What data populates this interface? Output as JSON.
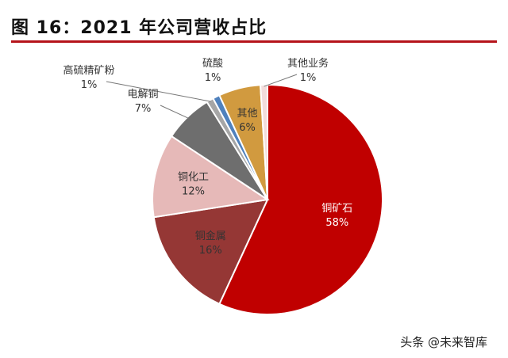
{
  "header": {
    "title": "图 16：2021 年公司营收占比"
  },
  "watermark": {
    "text": "头条 @未来智库"
  },
  "chart_data": {
    "type": "pie",
    "title": "图 16：2021 年公司营收占比",
    "slices": [
      {
        "label": "铜矿石",
        "value": 58,
        "pct": "58%",
        "color": "#c00000"
      },
      {
        "label": "铜金属",
        "value": 16,
        "pct": "16%",
        "color": "#953735"
      },
      {
        "label": "铜化工",
        "value": 12,
        "pct": "12%",
        "color": "#e6b9b8"
      },
      {
        "label": "电解铜",
        "value": 7,
        "pct": "7%",
        "color": "#6e6e6e"
      },
      {
        "label": "高硫精矿粉",
        "value": 1,
        "pct": "1%",
        "color": "#a6a6a6"
      },
      {
        "label": "硫酸",
        "value": 1,
        "pct": "1%",
        "color": "#4f81bd"
      },
      {
        "label": "其他",
        "value": 6,
        "pct": "6%",
        "color": "#d19a3f"
      },
      {
        "label": "其他业务",
        "value": 1,
        "pct": "1%",
        "color": "#f2dcdb"
      }
    ]
  }
}
